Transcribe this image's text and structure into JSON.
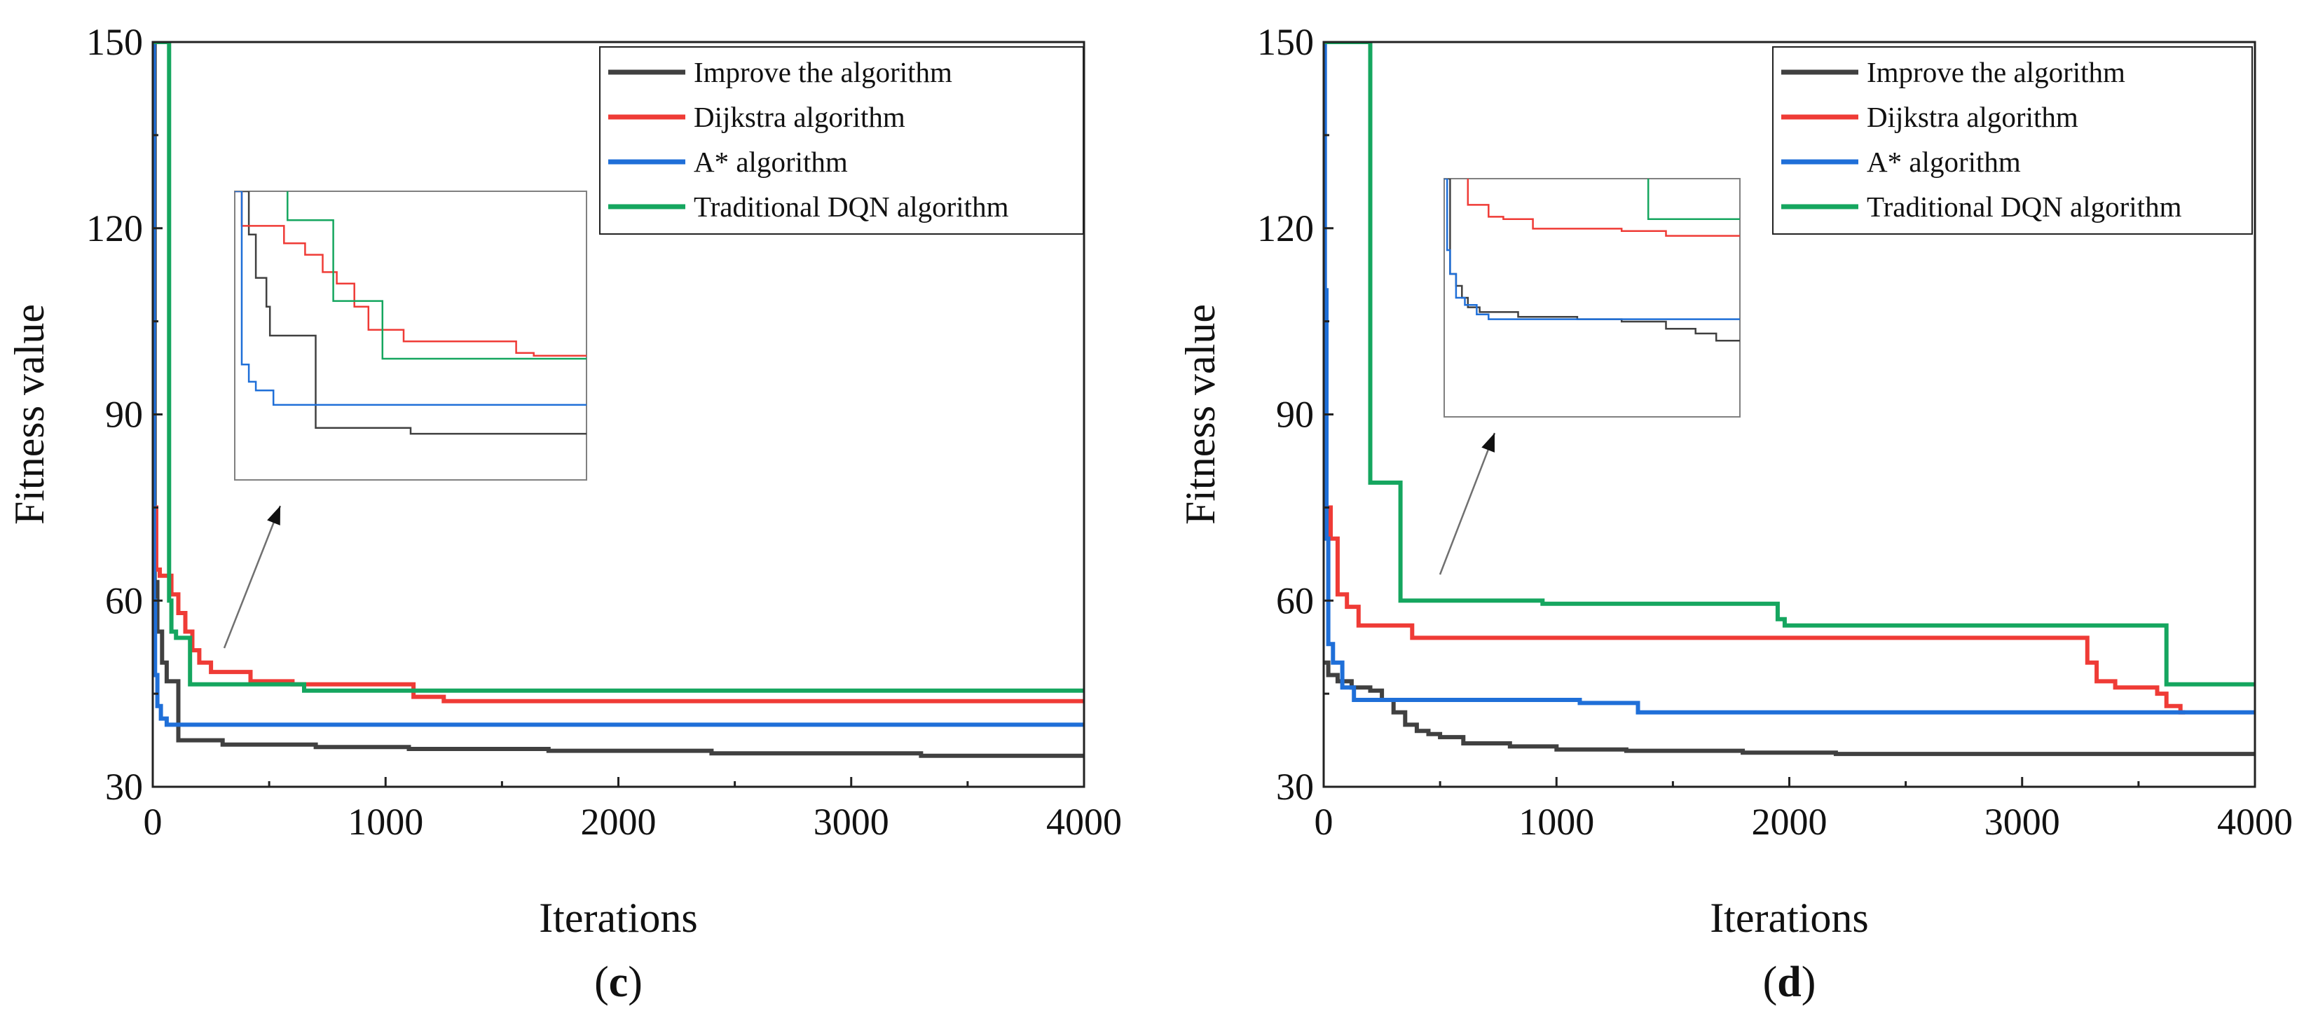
{
  "colors": {
    "improve": "#404040",
    "dijkstra": "#ef3b36",
    "astar": "#1f6fd8",
    "dqn": "#15a65f",
    "axis": "#222222",
    "inset_frame": "#808080",
    "arrow": "#707070"
  },
  "chart_data": [
    {
      "type": "line",
      "panel_label_prefix": "(",
      "panel_label_letter": "c",
      "panel_label_suffix": ")",
      "xlabel": "Iterations",
      "ylabel": "Fitness value",
      "xlim": [
        0,
        4000
      ],
      "ylim": [
        30,
        150
      ],
      "xticks": [
        0,
        1000,
        2000,
        3000,
        4000
      ],
      "yticks": [
        30,
        60,
        90,
        120,
        150
      ],
      "grid": false,
      "legend_position": "top-right",
      "series": [
        {
          "name": "Improve the algorithm",
          "color_key": "improve",
          "x": [
            0,
            8,
            8,
            20,
            20,
            40,
            40,
            60,
            60,
            110,
            110,
            300,
            300,
            700,
            700,
            1100,
            1100,
            1700,
            1700,
            2400,
            2400,
            3300,
            3300,
            4000
          ],
          "y": [
            150,
            150,
            63,
            63,
            55,
            55,
            50,
            50,
            47,
            47,
            37.5,
            37.5,
            36.8,
            36.8,
            36.4,
            36.4,
            36.1,
            36.1,
            35.8,
            35.8,
            35.4,
            35.4,
            35,
            35
          ]
        },
        {
          "name": "Dijkstra algorithm",
          "color_key": "dijkstra",
          "x": [
            0,
            15,
            15,
            30,
            30,
            80,
            80,
            110,
            110,
            140,
            140,
            170,
            170,
            200,
            200,
            250,
            250,
            420,
            420,
            600,
            600,
            1120,
            1120,
            1250,
            1250,
            4000
          ],
          "y": [
            75,
            75,
            65,
            65,
            64,
            64,
            61,
            61,
            58,
            58,
            55,
            55,
            52,
            52,
            50,
            50,
            48.5,
            48.5,
            47,
            47,
            46.5,
            46.5,
            44.5,
            44.5,
            43.8,
            43.8
          ],
          "inset_draw": true
        },
        {
          "name": "A* algorithm",
          "color_key": "astar",
          "x": [
            0,
            5,
            5,
            10,
            10,
            20,
            20,
            35,
            35,
            60,
            60,
            4000
          ],
          "y": [
            150,
            150,
            60,
            60,
            48,
            48,
            43,
            43,
            41,
            41,
            40,
            40
          ]
        },
        {
          "name": "Traditional DQN algorithm",
          "color_key": "dqn",
          "x": [
            0,
            60,
            60,
            70,
            70,
            80,
            80,
            100,
            100,
            160,
            160,
            650,
            650,
            4000
          ],
          "y": [
            150,
            150,
            150,
            150,
            60,
            60,
            55,
            55,
            54,
            54,
            46.5,
            46.5,
            45.5,
            45.5
          ]
        }
      ],
      "inset": {
        "series": [
          {
            "name": "Improve the algorithm",
            "color_key": "improve",
            "x": [
              0,
              0.04,
              0.04,
              0.06,
              0.06,
              0.09,
              0.09,
              0.1,
              0.1,
              0.23,
              0.23,
              0.5,
              0.5,
              1
            ],
            "y": [
              1,
              1,
              0.85,
              0.85,
              0.7,
              0.7,
              0.6,
              0.6,
              0.5,
              0.5,
              0.18,
              0.18,
              0.16,
              0.16
            ]
          },
          {
            "name": "Dijkstra algorithm",
            "color_key": "dijkstra",
            "x": [
              0,
              0.02,
              0.02,
              0.14,
              0.14,
              0.2,
              0.2,
              0.25,
              0.25,
              0.29,
              0.29,
              0.34,
              0.34,
              0.38,
              0.38,
              0.48,
              0.48,
              0.8,
              0.8,
              0.85,
              0.85,
              1
            ],
            "y": [
              1,
              1,
              0.88,
              0.88,
              0.82,
              0.82,
              0.78,
              0.78,
              0.72,
              0.72,
              0.68,
              0.68,
              0.6,
              0.6,
              0.52,
              0.52,
              0.48,
              0.48,
              0.44,
              0.44,
              0.43,
              0.43
            ]
          },
          {
            "name": "A* algorithm",
            "color_key": "astar",
            "x": [
              0,
              0.02,
              0.02,
              0.04,
              0.04,
              0.06,
              0.06,
              0.11,
              0.11,
              1
            ],
            "y": [
              1,
              1,
              0.4,
              0.4,
              0.34,
              0.34,
              0.31,
              0.31,
              0.26,
              0.26
            ]
          },
          {
            "name": "Traditional DQN algorithm",
            "color_key": "dqn",
            "x": [
              0.15,
              0.15,
              0.28,
              0.28,
              0.3,
              0.3,
              0.42,
              0.42,
              1
            ],
            "y": [
              1,
              0.9,
              0.9,
              0.62,
              0.62,
              0.62,
              0.62,
              0.42,
              0.42
            ]
          }
        ]
      }
    },
    {
      "type": "line",
      "panel_label_prefix": "(",
      "panel_label_letter": "d",
      "panel_label_suffix": ")",
      "xlabel": "Iterations",
      "ylabel": "Fitness value",
      "xlim": [
        0,
        4000
      ],
      "ylim": [
        30,
        150
      ],
      "xticks": [
        0,
        1000,
        2000,
        3000,
        4000
      ],
      "yticks": [
        30,
        60,
        90,
        120,
        150
      ],
      "grid": false,
      "legend_position": "top-right",
      "series": [
        {
          "name": "Improve the algorithm",
          "color_key": "improve",
          "x": [
            0,
            20,
            20,
            60,
            60,
            120,
            120,
            200,
            200,
            250,
            250,
            300,
            300,
            350,
            350,
            400,
            400,
            450,
            450,
            500,
            500,
            600,
            600,
            800,
            800,
            1000,
            1000,
            1300,
            1300,
            1800,
            1800,
            2200,
            2200,
            4000
          ],
          "y": [
            50,
            50,
            48,
            48,
            47,
            47,
            46,
            46,
            45.5,
            45.5,
            44,
            44,
            42,
            42,
            40,
            40,
            39,
            39,
            38.5,
            38.5,
            38,
            38,
            37,
            37,
            36.5,
            36.5,
            36,
            36,
            35.8,
            35.8,
            35.5,
            35.5,
            35.3,
            35.3
          ]
        },
        {
          "name": "Dijkstra algorithm",
          "color_key": "dijkstra",
          "x": [
            0,
            10,
            10,
            30,
            30,
            60,
            60,
            100,
            100,
            150,
            150,
            380,
            380,
            3280,
            3280,
            3320,
            3320,
            3400,
            3400,
            3580,
            3580,
            3620,
            3620,
            3680,
            3680,
            3700
          ],
          "y": [
            85,
            85,
            75,
            75,
            70,
            70,
            61,
            61,
            59,
            59,
            56,
            56,
            54,
            54,
            50,
            50,
            47,
            47,
            46,
            46,
            45,
            45,
            43,
            43,
            42,
            42
          ]
        },
        {
          "name": "A* algorithm",
          "color_key": "astar",
          "x": [
            0,
            5,
            5,
            12,
            12,
            20,
            20,
            40,
            40,
            80,
            80,
            130,
            130,
            1100,
            1100,
            1350,
            1350,
            4000
          ],
          "y": [
            150,
            150,
            110,
            110,
            70,
            70,
            53,
            53,
            50,
            50,
            46,
            46,
            44,
            44,
            43.5,
            43.5,
            42,
            42
          ]
        },
        {
          "name": "Traditional DQN algorithm",
          "color_key": "dqn",
          "x": [
            0,
            180,
            180,
            200,
            200,
            330,
            330,
            940,
            940,
            1950,
            1950,
            1980,
            1980,
            3620,
            3620,
            4000
          ],
          "y": [
            150,
            150,
            150,
            150,
            79,
            79,
            60,
            60,
            59.5,
            59.5,
            57,
            57,
            56,
            56,
            46.5,
            46.5
          ]
        }
      ],
      "inset": {
        "series": [
          {
            "name": "Improve the algorithm",
            "color_key": "improve",
            "x": [
              0,
              0.02,
              0.02,
              0.04,
              0.04,
              0.06,
              0.06,
              0.08,
              0.08,
              0.12,
              0.12,
              0.25,
              0.25,
              0.45,
              0.45,
              0.6,
              0.6,
              0.75,
              0.75,
              0.85,
              0.85,
              0.92,
              0.92,
              1
            ],
            "y": [
              1,
              1,
              0.6,
              0.6,
              0.55,
              0.55,
              0.5,
              0.5,
              0.46,
              0.46,
              0.44,
              0.44,
              0.42,
              0.42,
              0.41,
              0.41,
              0.4,
              0.4,
              0.37,
              0.37,
              0.35,
              0.35,
              0.32,
              0.32
            ]
          },
          {
            "name": "Dijkstra algorithm",
            "color_key": "dijkstra",
            "x": [
              0.08,
              0.08,
              0.15,
              0.15,
              0.2,
              0.2,
              0.3,
              0.3,
              0.6,
              0.6,
              0.75,
              0.75,
              1
            ],
            "y": [
              1,
              0.89,
              0.89,
              0.84,
              0.84,
              0.83,
              0.83,
              0.79,
              0.79,
              0.78,
              0.78,
              0.76,
              0.76
            ]
          },
          {
            "name": "A* algorithm",
            "color_key": "astar",
            "x": [
              0,
              0.01,
              0.01,
              0.02,
              0.02,
              0.04,
              0.04,
              0.07,
              0.07,
              0.11,
              0.11,
              0.15,
              0.15,
              1
            ],
            "y": [
              1,
              1,
              0.7,
              0.7,
              0.6,
              0.6,
              0.5,
              0.5,
              0.47,
              0.47,
              0.43,
              0.43,
              0.41,
              0.41
            ]
          },
          {
            "name": "Traditional DQN algorithm",
            "color_key": "dqn",
            "x": [
              0.69,
              0.69,
              1
            ],
            "y": [
              1,
              0.83,
              0.83
            ]
          }
        ]
      }
    }
  ]
}
